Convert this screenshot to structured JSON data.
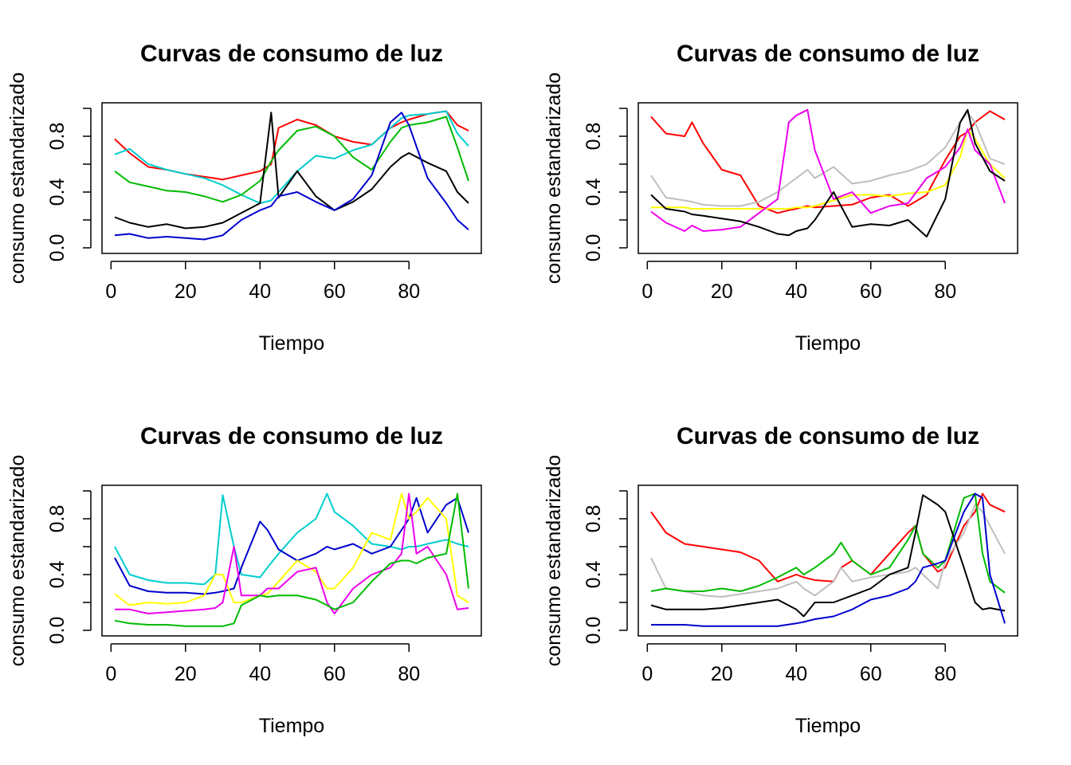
{
  "chart_data": [
    {
      "type": "line",
      "title": "Curvas de consumo de luz",
      "xlabel": "Tiempo",
      "ylabel": "consumo estandarizado",
      "xlim": [
        1,
        96
      ],
      "ylim": [
        0,
        1
      ],
      "xticks": [
        "0",
        "20",
        "40",
        "60",
        "80"
      ],
      "yticks": [
        "0.0",
        "0.4",
        "0.8"
      ],
      "grid": false,
      "legend": "none",
      "x_points": [
        1,
        5,
        10,
        15,
        20,
        25,
        30,
        35,
        40,
        43,
        45,
        50,
        55,
        60,
        65,
        70,
        75,
        78,
        80,
        85,
        90,
        93,
        96
      ],
      "series": [
        {
          "color": "#FF0000",
          "values": [
            0.78,
            0.68,
            0.58,
            0.56,
            0.53,
            0.51,
            0.49,
            0.52,
            0.55,
            0.6,
            0.86,
            0.92,
            0.88,
            0.8,
            0.76,
            0.74,
            0.86,
            0.9,
            0.92,
            0.96,
            0.98,
            0.88,
            0.84
          ]
        },
        {
          "color": "#00CDCD",
          "values": [
            0.67,
            0.71,
            0.6,
            0.56,
            0.53,
            0.5,
            0.45,
            0.38,
            0.32,
            0.34,
            0.4,
            0.55,
            0.66,
            0.64,
            0.7,
            0.74,
            0.86,
            0.93,
            0.95,
            0.96,
            0.98,
            0.82,
            0.73
          ]
        },
        {
          "color": "#00BB00",
          "values": [
            0.55,
            0.47,
            0.44,
            0.41,
            0.4,
            0.37,
            0.33,
            0.38,
            0.48,
            0.62,
            0.7,
            0.84,
            0.87,
            0.8,
            0.65,
            0.56,
            0.76,
            0.86,
            0.88,
            0.9,
            0.94,
            0.72,
            0.48
          ]
        },
        {
          "color": "#000000",
          "values": [
            0.22,
            0.18,
            0.15,
            0.17,
            0.14,
            0.15,
            0.18,
            0.25,
            0.32,
            0.97,
            0.36,
            0.55,
            0.37,
            0.27,
            0.33,
            0.42,
            0.58,
            0.65,
            0.68,
            0.61,
            0.55,
            0.4,
            0.32
          ]
        },
        {
          "color": "#0000CD",
          "values": [
            0.09,
            0.1,
            0.07,
            0.08,
            0.07,
            0.06,
            0.09,
            0.2,
            0.27,
            0.3,
            0.37,
            0.4,
            0.33,
            0.27,
            0.35,
            0.52,
            0.9,
            0.97,
            0.88,
            0.5,
            0.32,
            0.2,
            0.13
          ]
        }
      ]
    },
    {
      "type": "line",
      "title": "Curvas de consumo de luz",
      "xlabel": "Tiempo",
      "ylabel": "consumo estandarizado",
      "xlim": [
        1,
        96
      ],
      "ylim": [
        0,
        1
      ],
      "xticks": [
        "0",
        "20",
        "40",
        "60",
        "80"
      ],
      "yticks": [
        "0.0",
        "0.4",
        "0.8"
      ],
      "grid": false,
      "legend": "none",
      "x_points": [
        1,
        5,
        10,
        12,
        15,
        20,
        25,
        30,
        35,
        38,
        40,
        43,
        45,
        50,
        55,
        60,
        65,
        70,
        75,
        80,
        84,
        86,
        88,
        92,
        96
      ],
      "series": [
        {
          "color": "#FF0000",
          "values": [
            0.94,
            0.82,
            0.8,
            0.9,
            0.75,
            0.56,
            0.52,
            0.3,
            0.25,
            0.27,
            0.28,
            0.3,
            0.29,
            0.3,
            0.31,
            0.36,
            0.38,
            0.3,
            0.38,
            0.63,
            0.8,
            0.83,
            0.9,
            0.98,
            0.92
          ]
        },
        {
          "color": "#BEBEBE",
          "values": [
            0.52,
            0.36,
            0.34,
            0.33,
            0.31,
            0.3,
            0.3,
            0.33,
            0.4,
            0.46,
            0.5,
            0.56,
            0.5,
            0.58,
            0.46,
            0.48,
            0.52,
            0.55,
            0.6,
            0.72,
            0.9,
            0.97,
            0.9,
            0.64,
            0.6
          ]
        },
        {
          "color": "#FFFF00",
          "values": [
            0.29,
            0.29,
            0.29,
            0.28,
            0.28,
            0.28,
            0.28,
            0.28,
            0.28,
            0.28,
            0.29,
            0.29,
            0.3,
            0.34,
            0.38,
            0.38,
            0.37,
            0.39,
            0.4,
            0.45,
            0.65,
            0.85,
            0.78,
            0.6,
            0.5
          ]
        },
        {
          "color": "#EE00EE",
          "values": [
            0.26,
            0.18,
            0.12,
            0.16,
            0.12,
            0.13,
            0.15,
            0.25,
            0.35,
            0.9,
            0.95,
            0.99,
            0.7,
            0.35,
            0.4,
            0.25,
            0.3,
            0.32,
            0.5,
            0.58,
            0.72,
            0.85,
            0.7,
            0.6,
            0.32
          ]
        },
        {
          "color": "#000000",
          "values": [
            0.38,
            0.28,
            0.26,
            0.24,
            0.23,
            0.21,
            0.19,
            0.15,
            0.1,
            0.09,
            0.12,
            0.14,
            0.2,
            0.4,
            0.15,
            0.17,
            0.16,
            0.2,
            0.08,
            0.35,
            0.9,
            0.99,
            0.75,
            0.55,
            0.48
          ]
        }
      ]
    },
    {
      "type": "line",
      "title": "Curvas de consumo de luz",
      "xlabel": "Tiempo",
      "ylabel": "consumo estandarizado",
      "xlim": [
        1,
        96
      ],
      "ylim": [
        0,
        1
      ],
      "xticks": [
        "0",
        "20",
        "40",
        "60",
        "80"
      ],
      "yticks": [
        "0.0",
        "0.4",
        "0.8"
      ],
      "grid": false,
      "legend": "none",
      "x_points": [
        1,
        5,
        10,
        15,
        20,
        25,
        28,
        30,
        33,
        35,
        40,
        42,
        45,
        50,
        55,
        58,
        60,
        65,
        70,
        75,
        78,
        80,
        82,
        85,
        90,
        93,
        96
      ],
      "series": [
        {
          "color": "#00CDCD",
          "values": [
            0.6,
            0.4,
            0.36,
            0.34,
            0.34,
            0.33,
            0.4,
            0.97,
            0.6,
            0.4,
            0.38,
            0.45,
            0.55,
            0.7,
            0.8,
            0.98,
            0.85,
            0.75,
            0.62,
            0.6,
            0.58,
            0.6,
            0.6,
            0.62,
            0.65,
            0.62,
            0.6
          ]
        },
        {
          "color": "#0000CD",
          "values": [
            0.52,
            0.32,
            0.28,
            0.27,
            0.27,
            0.26,
            0.27,
            0.28,
            0.3,
            0.45,
            0.78,
            0.72,
            0.58,
            0.5,
            0.55,
            0.6,
            0.58,
            0.62,
            0.55,
            0.6,
            0.72,
            0.8,
            0.95,
            0.7,
            0.9,
            0.95,
            0.7
          ]
        },
        {
          "color": "#FFFF00",
          "values": [
            0.26,
            0.18,
            0.2,
            0.19,
            0.2,
            0.25,
            0.4,
            0.4,
            0.2,
            0.2,
            0.25,
            0.26,
            0.35,
            0.5,
            0.42,
            0.3,
            0.3,
            0.45,
            0.7,
            0.65,
            0.98,
            0.8,
            0.85,
            0.95,
            0.8,
            0.25,
            0.2
          ]
        },
        {
          "color": "#EE00EE",
          "values": [
            0.15,
            0.15,
            0.12,
            0.13,
            0.14,
            0.15,
            0.16,
            0.2,
            0.6,
            0.25,
            0.25,
            0.3,
            0.3,
            0.42,
            0.45,
            0.2,
            0.12,
            0.3,
            0.4,
            0.45,
            0.55,
            0.98,
            0.55,
            0.6,
            0.4,
            0.15,
            0.16
          ]
        },
        {
          "color": "#00BB00",
          "values": [
            0.07,
            0.05,
            0.04,
            0.04,
            0.03,
            0.03,
            0.03,
            0.03,
            0.05,
            0.18,
            0.25,
            0.24,
            0.25,
            0.25,
            0.22,
            0.18,
            0.15,
            0.2,
            0.35,
            0.48,
            0.5,
            0.5,
            0.48,
            0.52,
            0.55,
            0.98,
            0.3
          ]
        }
      ]
    },
    {
      "type": "line",
      "title": "Curvas de consumo de luz",
      "xlabel": "Tiempo",
      "ylabel": "consumo estandarizado",
      "xlim": [
        1,
        96
      ],
      "ylim": [
        0,
        1
      ],
      "xticks": [
        "0",
        "20",
        "40",
        "60",
        "80"
      ],
      "yticks": [
        "0.0",
        "0.4",
        "0.8"
      ],
      "grid": false,
      "legend": "none",
      "x_points": [
        1,
        5,
        10,
        15,
        20,
        25,
        30,
        35,
        40,
        42,
        45,
        50,
        52,
        55,
        60,
        65,
        70,
        72,
        74,
        78,
        80,
        85,
        88,
        90,
        92,
        96
      ],
      "series": [
        {
          "color": "#FF0000",
          "values": [
            0.85,
            0.7,
            0.62,
            0.6,
            0.58,
            0.56,
            0.5,
            0.35,
            0.4,
            0.38,
            0.36,
            0.35,
            0.45,
            0.5,
            0.4,
            0.55,
            0.7,
            0.75,
            0.55,
            0.42,
            0.45,
            0.75,
            0.85,
            0.98,
            0.9,
            0.85
          ]
        },
        {
          "color": "#BEBEBE",
          "values": [
            0.52,
            0.3,
            0.28,
            0.25,
            0.24,
            0.26,
            0.28,
            0.3,
            0.35,
            0.3,
            0.25,
            0.35,
            0.45,
            0.35,
            0.38,
            0.4,
            0.42,
            0.45,
            0.4,
            0.3,
            0.5,
            0.7,
            0.9,
            0.85,
            0.75,
            0.55
          ]
        },
        {
          "color": "#00BB00",
          "values": [
            0.28,
            0.3,
            0.28,
            0.28,
            0.3,
            0.28,
            0.32,
            0.38,
            0.45,
            0.4,
            0.45,
            0.55,
            0.63,
            0.5,
            0.4,
            0.45,
            0.65,
            0.75,
            0.55,
            0.45,
            0.5,
            0.95,
            0.98,
            0.55,
            0.35,
            0.27
          ]
        },
        {
          "color": "#000000",
          "values": [
            0.18,
            0.15,
            0.15,
            0.15,
            0.16,
            0.18,
            0.2,
            0.22,
            0.15,
            0.1,
            0.2,
            0.2,
            0.22,
            0.25,
            0.3,
            0.4,
            0.45,
            0.7,
            0.97,
            0.9,
            0.85,
            0.45,
            0.2,
            0.15,
            0.16,
            0.14
          ]
        },
        {
          "color": "#0000CD",
          "values": [
            0.04,
            0.04,
            0.04,
            0.03,
            0.03,
            0.03,
            0.03,
            0.03,
            0.05,
            0.06,
            0.08,
            0.1,
            0.12,
            0.15,
            0.22,
            0.25,
            0.3,
            0.35,
            0.45,
            0.48,
            0.5,
            0.85,
            0.98,
            0.95,
            0.4,
            0.05
          ]
        }
      ]
    }
  ]
}
